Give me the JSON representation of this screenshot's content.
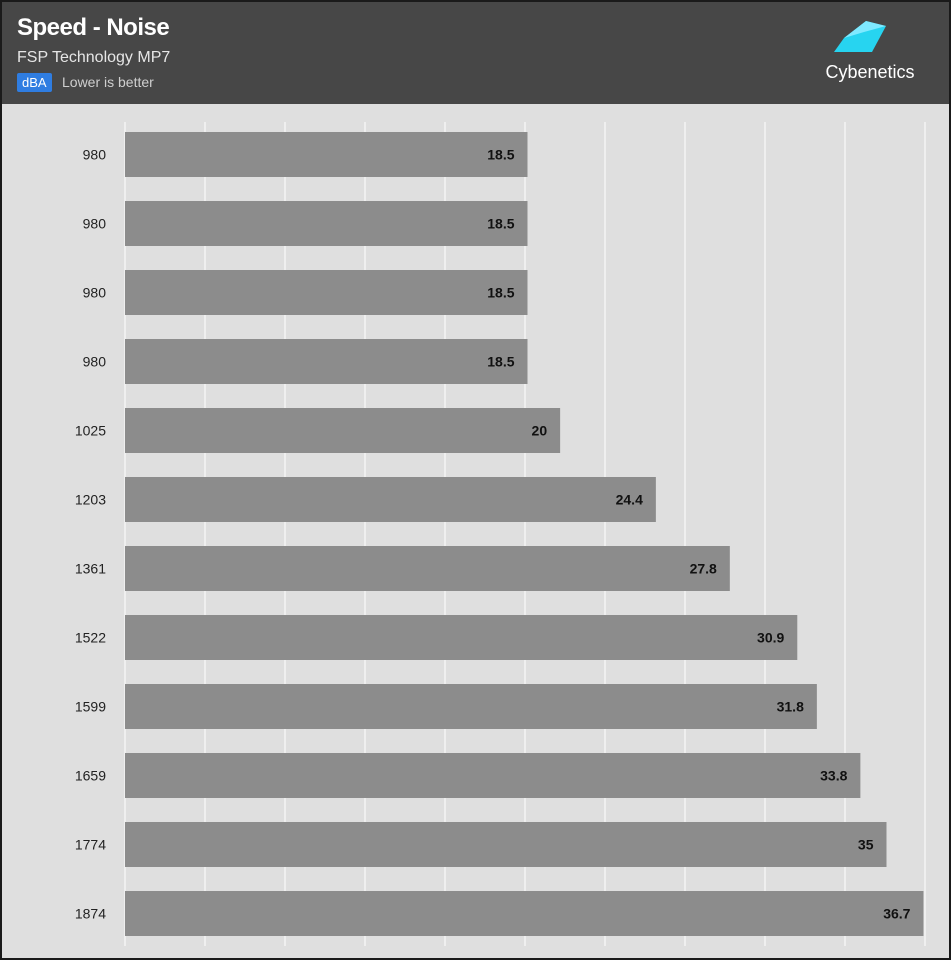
{
  "header": {
    "title": "Speed - Noise",
    "subtitle": "FSP Technology MP7",
    "unit_badge": "dBA",
    "note": "Lower is better",
    "logo_text": "Cybenetics"
  },
  "colors": {
    "header_bg": "#474747",
    "plot_bg": "#dfdfdf",
    "bar": "#8c8c8c",
    "badge": "#2f7de1",
    "logo_accent": "#27d4f0"
  },
  "chart_data": {
    "type": "bar",
    "orientation": "horizontal",
    "categories": [
      "980",
      "980",
      "980",
      "980",
      "1025",
      "1203",
      "1361",
      "1522",
      "1599",
      "1659",
      "1774",
      "1874"
    ],
    "values": [
      18.5,
      18.5,
      18.5,
      18.5,
      20,
      24.4,
      27.8,
      30.9,
      31.8,
      33.8,
      35,
      36.7
    ],
    "unit": "dBA",
    "xlim": [
      0,
      37
    ],
    "grid": true,
    "legend": "none"
  }
}
